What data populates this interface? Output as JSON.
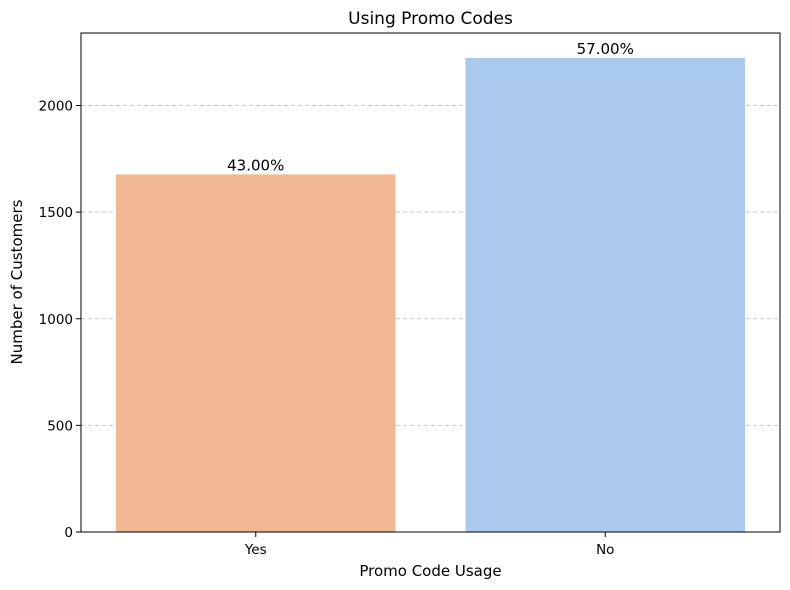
{
  "chart_data": {
    "type": "bar",
    "title": "Using Promo Codes",
    "xlabel": "Promo Code Usage",
    "ylabel": "Number of Customers",
    "categories": [
      "Yes",
      "No"
    ],
    "values": [
      1677,
      2223
    ],
    "data_labels": [
      "43.00%",
      "57.00%"
    ],
    "colors": [
      "#f0b993",
      "#abc9ec"
    ],
    "ylim": [
      0,
      2340
    ],
    "yticks": [
      0,
      500,
      1000,
      1500,
      2000
    ],
    "grid": "y-dashed",
    "legend": "none"
  }
}
